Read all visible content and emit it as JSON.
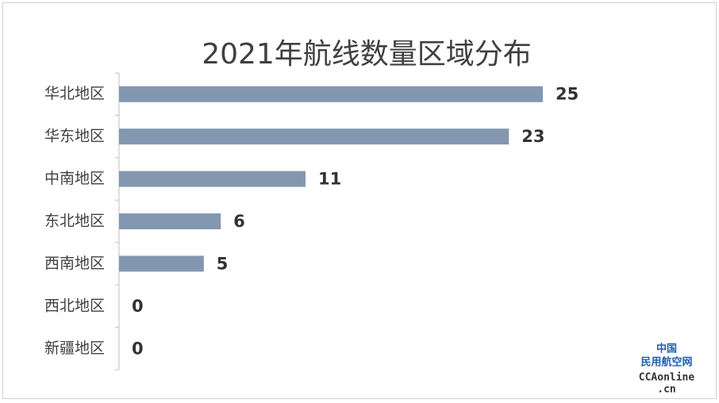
{
  "chart_data": {
    "type": "bar",
    "orientation": "horizontal",
    "title": "2021年航线数量区域分布",
    "categories": [
      "华北地区",
      "华东地区",
      "中南地区",
      "东北地区",
      "西南地区",
      "西北地区",
      "新疆地区"
    ],
    "values": [
      25,
      23,
      11,
      6,
      5,
      0,
      0
    ],
    "color": "#8497b0"
  },
  "watermark": {
    "lines": [
      "中国",
      "民用航空网",
      "CCAonline",
      ".cn"
    ]
  }
}
